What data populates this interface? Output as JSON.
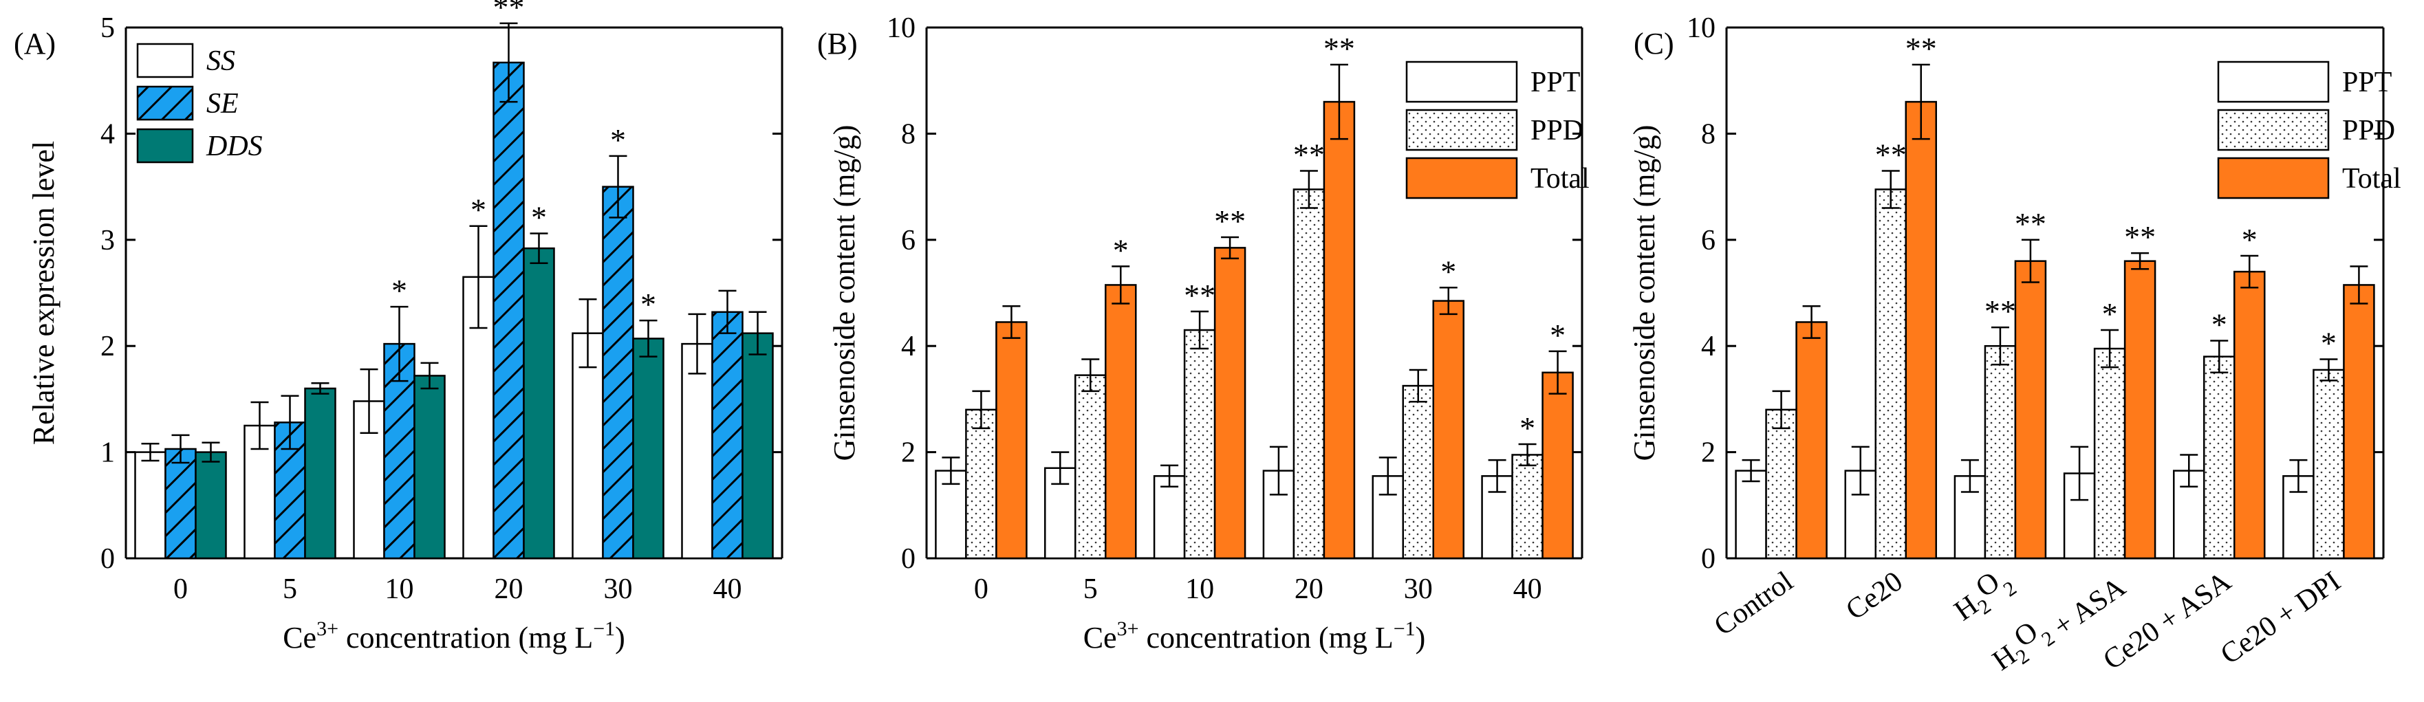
{
  "figure": {
    "colors": {
      "axis": "#000000",
      "white": "#ffffff",
      "blue": "#1aa0f0",
      "teal": "#007a74",
      "orange": "#ff7a1a"
    }
  },
  "chart_data": [
    {
      "panel": "(A)",
      "type": "bar",
      "title": "",
      "xlabel": "Ce3+ concentration (mg L−1)",
      "xlabel_parts": {
        "pre": "Ce",
        "sup1": "3+",
        "mid": " concentration (mg L",
        "sup2": "−1",
        "post": ")"
      },
      "ylabel": "Relative expression level",
      "ylim": [
        0,
        5
      ],
      "yticks": [
        "0",
        "1",
        "2",
        "3",
        "4",
        "5"
      ],
      "categories": [
        "0",
        "5",
        "10",
        "20",
        "30",
        "40"
      ],
      "legend_position": "top-left",
      "series": [
        {
          "name": "SS",
          "pattern": "white",
          "values": [
            1.0,
            1.25,
            1.48,
            2.65,
            2.12,
            2.02
          ],
          "errors": [
            0.08,
            0.22,
            0.3,
            0.48,
            0.32,
            0.28
          ],
          "marks": [
            "",
            "",
            "",
            "*",
            "",
            ""
          ]
        },
        {
          "name": "SE",
          "pattern": "blue-hatch",
          "values": [
            1.03,
            1.28,
            2.02,
            4.67,
            3.5,
            2.32
          ],
          "errors": [
            0.13,
            0.25,
            0.35,
            0.37,
            0.29,
            0.2
          ],
          "marks": [
            "",
            "",
            "*",
            "**",
            "*",
            ""
          ]
        },
        {
          "name": "DDS",
          "pattern": "teal",
          "values": [
            1.0,
            1.6,
            1.72,
            2.92,
            2.07,
            2.12
          ],
          "errors": [
            0.09,
            0.05,
            0.12,
            0.14,
            0.17,
            0.2
          ],
          "marks": [
            "",
            "",
            "",
            "*",
            "*",
            ""
          ]
        }
      ]
    },
    {
      "panel": "(B)",
      "type": "bar",
      "title": "",
      "xlabel": "Ce3+ concentration (mg  L−1)",
      "xlabel_parts": {
        "pre": "Ce",
        "sup1": "3+",
        "mid": " concentration (mg  L",
        "sup2": "−1",
        "post": ")"
      },
      "ylabel": "Ginsenoside content (mg/g)",
      "ylim": [
        0,
        10
      ],
      "yticks": [
        "0",
        "2",
        "4",
        "6",
        "8",
        "10"
      ],
      "categories": [
        "0",
        "5",
        "10",
        "20",
        "30",
        "40"
      ],
      "legend_position": "top-right",
      "series": [
        {
          "name": "PPT",
          "pattern": "white",
          "values": [
            1.65,
            1.7,
            1.55,
            1.65,
            1.55,
            1.55
          ],
          "errors": [
            0.25,
            0.3,
            0.2,
            0.45,
            0.35,
            0.3
          ],
          "marks": [
            "",
            "",
            "",
            "",
            "",
            ""
          ]
        },
        {
          "name": "PPD",
          "pattern": "dots",
          "values": [
            2.8,
            3.45,
            4.3,
            6.95,
            3.25,
            1.95
          ],
          "errors": [
            0.35,
            0.3,
            0.35,
            0.35,
            0.3,
            0.2
          ],
          "marks": [
            "",
            "",
            "**",
            "**",
            "",
            "*"
          ]
        },
        {
          "name": "Total",
          "pattern": "orange",
          "values": [
            4.45,
            5.15,
            5.85,
            8.6,
            4.85,
            3.5
          ],
          "errors": [
            0.3,
            0.35,
            0.2,
            0.7,
            0.25,
            0.4
          ],
          "marks": [
            "",
            "*",
            "**",
            "**",
            "*",
            "*"
          ]
        }
      ]
    },
    {
      "panel": "(C)",
      "type": "bar",
      "title": "",
      "xlabel": "",
      "ylabel": "Ginsenoside content (mg/g)",
      "ylim": [
        0,
        10
      ],
      "yticks": [
        "0",
        "2",
        "4",
        "6",
        "8",
        "10"
      ],
      "categories": [
        "Control",
        "Ce20",
        "H2O2",
        "H2O2 + ASA",
        "Ce20 + ASA",
        "Ce20 + DPI"
      ],
      "legend_position": "top-right",
      "series": [
        {
          "name": "PPT",
          "pattern": "white",
          "values": [
            1.65,
            1.65,
            1.55,
            1.6,
            1.65,
            1.55
          ],
          "errors": [
            0.2,
            0.45,
            0.3,
            0.5,
            0.3,
            0.3
          ],
          "marks": [
            "",
            "",
            "",
            "",
            "",
            ""
          ]
        },
        {
          "name": "PPD",
          "pattern": "dots",
          "values": [
            2.8,
            6.95,
            4.0,
            3.95,
            3.8,
            3.55
          ],
          "errors": [
            0.35,
            0.35,
            0.35,
            0.35,
            0.3,
            0.2
          ],
          "marks": [
            "",
            "**",
            "**",
            "*",
            "*",
            "*"
          ]
        },
        {
          "name": "Total",
          "pattern": "orange",
          "values": [
            4.45,
            8.6,
            5.6,
            5.6,
            5.4,
            5.15
          ],
          "errors": [
            0.3,
            0.7,
            0.4,
            0.15,
            0.3,
            0.35
          ],
          "marks": [
            "",
            "**",
            "**",
            "**",
            "*",
            ""
          ]
        }
      ]
    }
  ]
}
